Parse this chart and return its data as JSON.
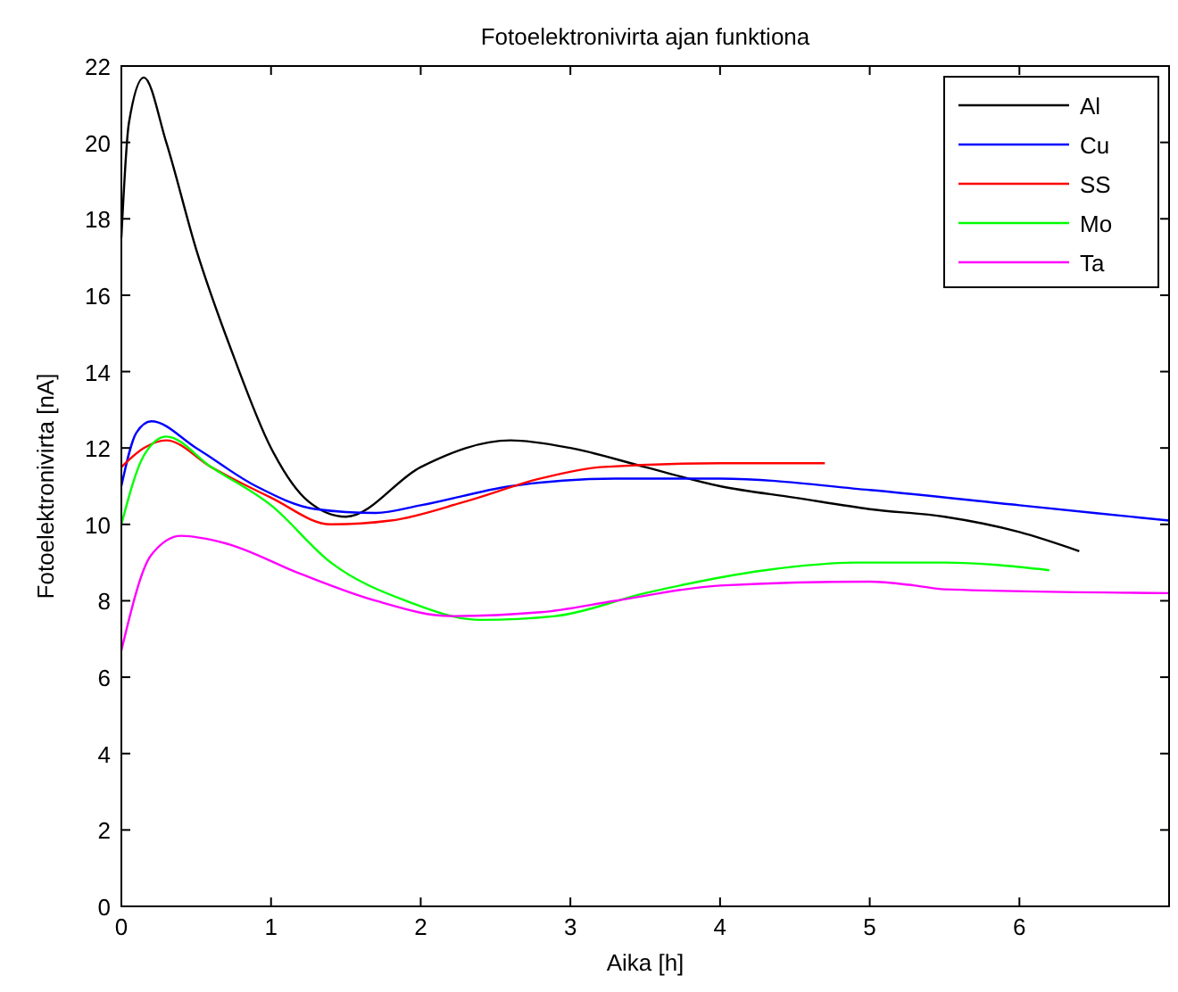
{
  "chart_data": {
    "type": "line",
    "title": "Fotoelektronivirta ajan funktiona",
    "xlabel": "Aika [h]",
    "ylabel": "Fotoelektronivirta [nA]",
    "xlim": [
      0,
      7
    ],
    "ylim": [
      0,
      22
    ],
    "xticks": [
      0,
      1,
      2,
      3,
      4,
      5,
      6
    ],
    "yticks": [
      0,
      2,
      4,
      6,
      8,
      10,
      12,
      14,
      16,
      18,
      20,
      22
    ],
    "grid": false,
    "legend": "top right",
    "line_style": "solid",
    "series": [
      {
        "name": "Al",
        "color": "#000000",
        "x": [
          0,
          0.05,
          0.15,
          0.3,
          0.5,
          0.75,
          1,
          1.25,
          1.5,
          2,
          2.6,
          3,
          3.5,
          4,
          4.5,
          5,
          5.5,
          6,
          6.4
        ],
        "values": [
          17.5,
          20.5,
          21.7,
          20,
          17.2,
          14.4,
          12,
          10.6,
          10.2,
          11.5,
          12.2,
          12,
          11.5,
          11,
          10.7,
          10.4,
          10.2,
          9.8,
          9.3
        ]
      },
      {
        "name": "Cu",
        "color": "#0000ff",
        "x": [
          0,
          0.1,
          0.2,
          0.5,
          0.9,
          1.3,
          1.7,
          2,
          2.6,
          3.3,
          4,
          5,
          6,
          7
        ],
        "values": [
          11,
          12.4,
          12.7,
          12,
          11,
          10.4,
          10.3,
          10.5,
          11,
          11.2,
          11.2,
          10.9,
          10.5,
          10.1
        ]
      },
      {
        "name": "SS",
        "color": "#ff0000",
        "x": [
          0,
          0.15,
          0.3,
          0.6,
          1,
          1.4,
          1.8,
          2.3,
          2.8,
          3.2,
          4,
          4.7
        ],
        "values": [
          11.5,
          12,
          12.2,
          11.5,
          10.7,
          10,
          10.1,
          10.6,
          11.2,
          11.5,
          11.6,
          11.6
        ]
      },
      {
        "name": "Mo",
        "color": "#00ff00",
        "x": [
          0,
          0.15,
          0.3,
          0.6,
          1,
          1.4,
          1.9,
          2.4,
          2.9,
          3.5,
          4.3,
          4.9,
          5.5,
          6.2
        ],
        "values": [
          10,
          11.8,
          12.3,
          11.5,
          10.5,
          9,
          8,
          7.5,
          7.6,
          8.2,
          8.8,
          9,
          9,
          8.8
        ]
      },
      {
        "name": "Ta",
        "color": "#ff00ff",
        "x": [
          0,
          0.2,
          0.4,
          0.7,
          1.2,
          1.7,
          2.2,
          2.8,
          3.3,
          4,
          5,
          5.3,
          5.5,
          7
        ],
        "values": [
          6.7,
          9.2,
          9.7,
          9.5,
          8.7,
          8,
          7.6,
          7.7,
          8,
          8.4,
          8.5,
          8.4,
          8.3,
          8.2
        ]
      }
    ]
  }
}
